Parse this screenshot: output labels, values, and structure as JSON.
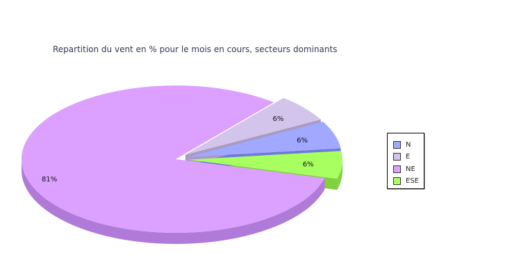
{
  "chart_data": {
    "type": "pie",
    "title": "Repartition du vent en % pour le mois en cours, secteurs dominants",
    "slices": [
      {
        "name": "N",
        "value": 6,
        "label": "6%",
        "color": "#a0a8ff",
        "side_color": "#7078d8"
      },
      {
        "name": "E",
        "value": 6,
        "label": "6%",
        "color": "#d2c4ea",
        "side_color": "#a89bc4"
      },
      {
        "name": "NE",
        "value": 81,
        "label": "81%",
        "color": "#dca0ff",
        "side_color": "#b07ad8"
      },
      {
        "name": "ESE",
        "value": 6,
        "label": "6%",
        "color": "#a8ff60",
        "side_color": "#80d040"
      }
    ],
    "legend_position": "right"
  }
}
